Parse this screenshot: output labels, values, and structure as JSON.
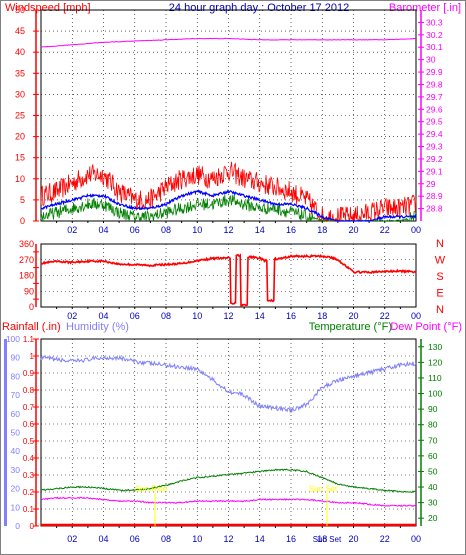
{
  "header": {
    "title": "24 hour graph day : October 17 2012",
    "left_label": "Windspeed [mph]",
    "right_label": "Barometer [.in]"
  },
  "colors": {
    "wind": "#ff0000",
    "wind_avg": "#0000ff",
    "wind_low": "#008000",
    "barometer": "#ff00ff",
    "direction": "#ff0000",
    "humidity": "#8080ff",
    "temperature": "#008000",
    "dewpoint": "#ff00ff",
    "rain": "#ff0000",
    "sun": "#ffff00",
    "grid": "#000000"
  },
  "hour_ticks": [
    "02",
    "04",
    "06",
    "08",
    "10",
    "12",
    "14",
    "16",
    "18",
    "20",
    "22",
    "00"
  ],
  "chart_data": [
    {
      "type": "line",
      "panel": "wind",
      "x_unit": "hour",
      "xlim": [
        0,
        24
      ],
      "y_left": {
        "label": "Windspeed [mph]",
        "ylim": [
          0,
          50
        ],
        "ticks": [
          "0",
          "5",
          "10",
          "15",
          "20",
          "25",
          "30",
          "35",
          "40",
          "45",
          "50"
        ]
      },
      "y_right": {
        "label": "Barometer [.in]",
        "ylim": [
          28.7,
          30.4
        ],
        "ticks": [
          "28.8",
          "28.9",
          "29",
          "29.1",
          "29.2",
          "29.3",
          "29.4",
          "29.5",
          "29.6",
          "29.7",
          "29.8",
          "29.9",
          "30",
          "30.1",
          "30.2",
          "30.3"
        ]
      },
      "series": [
        {
          "id": "gust",
          "color": "#ff0000",
          "x": [
            0,
            1,
            2,
            3,
            4,
            5,
            6,
            7,
            8,
            9,
            10,
            11,
            12,
            13,
            14,
            15,
            16,
            17,
            18,
            19,
            20,
            21,
            22,
            23,
            24
          ],
          "values": [
            6,
            7,
            9,
            11,
            11,
            7,
            5,
            5,
            8,
            10,
            11,
            10,
            12,
            10,
            9,
            8,
            7,
            5,
            1,
            1,
            1,
            2,
            3,
            3,
            4
          ]
        },
        {
          "id": "average",
          "color": "#0000ff",
          "x": [
            0,
            1,
            2,
            3,
            4,
            5,
            6,
            7,
            8,
            9,
            10,
            11,
            12,
            13,
            14,
            15,
            16,
            17,
            18,
            19,
            20,
            21,
            22,
            23,
            24
          ],
          "values": [
            3,
            4,
            5,
            6,
            6,
            4,
            3,
            3,
            4,
            6,
            7,
            6,
            7,
            6,
            5,
            4,
            4,
            3,
            1,
            0,
            0,
            0,
            1,
            1,
            1
          ]
        },
        {
          "id": "low",
          "color": "#008000",
          "x": [
            0,
            1,
            2,
            3,
            4,
            5,
            6,
            7,
            8,
            9,
            10,
            11,
            12,
            13,
            14,
            15,
            16,
            17,
            18,
            19,
            20,
            21,
            22,
            23,
            24
          ],
          "values": [
            1,
            2,
            3,
            4,
            4,
            2,
            1,
            1,
            2,
            3,
            4,
            4,
            5,
            4,
            3,
            3,
            2,
            1,
            0,
            0,
            0,
            0,
            0,
            0,
            1
          ]
        },
        {
          "id": "barometer",
          "color": "#ff00ff",
          "axis": "right",
          "x": [
            0,
            2,
            4,
            6,
            8,
            10,
            12,
            14,
            16,
            18,
            20,
            22,
            24
          ],
          "values": [
            30.1,
            30.12,
            30.14,
            30.15,
            30.16,
            30.17,
            30.17,
            30.16,
            30.16,
            30.16,
            30.16,
            30.16,
            30.17
          ]
        }
      ]
    },
    {
      "type": "line",
      "panel": "direction",
      "xlim": [
        0,
        24
      ],
      "y_left": {
        "ylim": [
          0,
          360
        ],
        "ticks": [
          "0",
          "90",
          "180",
          "270",
          "360"
        ],
        "tick_values": [
          0,
          90,
          180,
          270,
          360
        ],
        "minor": [
          45,
          135,
          225,
          315
        ]
      },
      "y_right": {
        "ticks": [
          "N",
          "W",
          "S",
          "E",
          "N"
        ]
      },
      "series": [
        {
          "id": "wind_direction",
          "color": "#ff0000",
          "x": [
            0,
            1,
            2,
            3,
            4,
            5,
            6,
            7,
            8,
            9,
            10,
            11,
            12,
            12.3,
            12.6,
            13,
            13.5,
            14,
            14.3,
            14.7,
            15.2,
            15.5,
            16,
            17,
            18,
            18.5,
            19,
            20,
            21,
            22,
            23,
            24
          ],
          "values": [
            250,
            260,
            255,
            262,
            262,
            245,
            242,
            238,
            243,
            248,
            265,
            278,
            280,
            20,
            295,
            10,
            285,
            280,
            265,
            35,
            275,
            280,
            290,
            290,
            290,
            285,
            270,
            200,
            198,
            203,
            205,
            200
          ]
        }
      ]
    },
    {
      "type": "line",
      "panel": "climate",
      "xlim": [
        0,
        24
      ],
      "y_left": {
        "label": "Humidity (%)",
        "ylim": [
          0,
          100
        ],
        "ticks": [
          "0",
          "10",
          "20",
          "30",
          "40",
          "50",
          "60",
          "70",
          "80",
          "90",
          "100"
        ]
      },
      "y_rain": {
        "label": "Rainfall (.in)",
        "ylim": [
          0,
          1.1
        ],
        "ticks": [
          "0",
          "0.1",
          "0.2",
          "0.3",
          "0.4",
          "0.5",
          "0.6",
          "0.7",
          "0.8",
          "0.9",
          "1",
          "1.1"
        ]
      },
      "y_right": {
        "label": "Temperature (°F)",
        "ylim": [
          15,
          135
        ],
        "ticks": [
          "20",
          "30",
          "40",
          "50",
          "60",
          "70",
          "80",
          "90",
          "100",
          "110",
          "120",
          "130"
        ]
      },
      "dewpoint_label": "Dew Point (°F)",
      "series": [
        {
          "id": "humidity",
          "color": "#8080ff",
          "x": [
            0,
            1,
            2,
            3,
            4,
            5,
            6,
            7,
            8,
            9,
            10,
            11,
            12,
            13,
            14,
            15,
            16,
            17,
            18,
            19,
            20,
            21,
            22,
            23,
            24
          ],
          "values": [
            90,
            89,
            88,
            89,
            90,
            90,
            88,
            87,
            86,
            85,
            84,
            78,
            72,
            70,
            64,
            63,
            62,
            65,
            74,
            78,
            80,
            82,
            84,
            86,
            87
          ]
        },
        {
          "id": "temperature",
          "color": "#008000",
          "axis": "right",
          "x": [
            0,
            1,
            2,
            3,
            4,
            5,
            6,
            7,
            8,
            9,
            10,
            11,
            12,
            13,
            14,
            15,
            16,
            17,
            18,
            19,
            20,
            21,
            22,
            23,
            24
          ],
          "values": [
            38,
            39,
            40,
            40,
            39,
            38,
            38,
            39,
            41,
            44,
            46,
            47,
            48,
            49,
            50,
            51,
            51,
            50,
            46,
            42,
            40,
            39,
            38,
            37,
            37
          ]
        },
        {
          "id": "dewpoint",
          "color": "#ff00ff",
          "axis": "right",
          "x": [
            0,
            1,
            2,
            3,
            4,
            5,
            6,
            7,
            8,
            9,
            10,
            11,
            12,
            13,
            14,
            15,
            16,
            17,
            18,
            19,
            20,
            21,
            22,
            23,
            24
          ],
          "values": [
            32,
            33,
            33,
            33,
            32,
            31,
            31,
            30,
            30,
            30,
            31,
            31,
            31,
            31,
            32,
            32,
            32,
            32,
            31,
            30,
            30,
            29,
            28,
            28,
            28
          ]
        },
        {
          "id": "rainfall",
          "color": "#ff0000",
          "axis": "rain",
          "x": [
            0,
            24
          ],
          "values": [
            0,
            0
          ]
        }
      ],
      "annotations": [
        {
          "label": "Sun Rise",
          "hour": 7.3
        },
        {
          "label": "Sun Set",
          "hour": 18.3
        }
      ],
      "sunset_tick_label": "Sun Set"
    }
  ]
}
